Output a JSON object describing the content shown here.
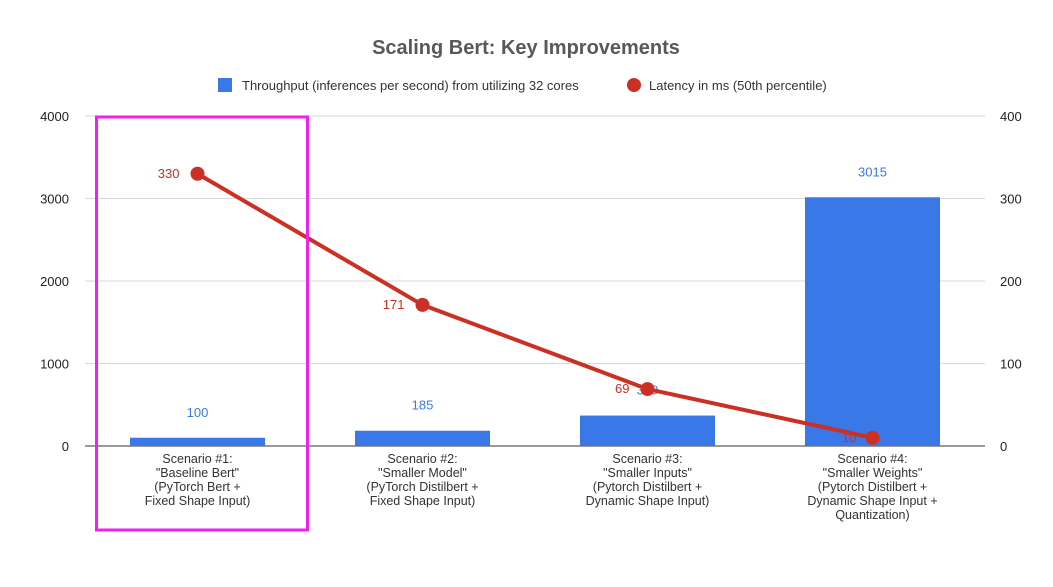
{
  "chart_data": {
    "type": "bar",
    "title": "Scaling Bert: Key Improvements",
    "categories": [
      [
        "Scenario #1:",
        "\"Baseline Bert\"",
        "(PyTorch Bert +",
        "Fixed Shape Input)"
      ],
      [
        "Scenario #2:",
        "\"Smaller Model\"",
        "(PyTorch Distilbert +",
        "Fixed Shape Input)"
      ],
      [
        "Scenario #3:",
        "\"Smaller Inputs\"",
        "(Pytorch Distilbert +",
        "Dynamic Shape Input)"
      ],
      [
        "Scenario #4:",
        "\"Smaller Weights\"",
        "(Pytorch Distilbert +",
        "Dynamic Shape Input +",
        "Quantization)"
      ]
    ],
    "series": [
      {
        "name": "Throughput (inferences per second) from utilizing 32 cores",
        "type": "bar",
        "axis": "left",
        "color": "#3b78e7",
        "values": [
          100,
          185,
          369,
          3015
        ]
      },
      {
        "name": "Latency in ms (50th percentile)",
        "type": "line",
        "axis": "right",
        "color": "#cc2f23",
        "values": [
          330,
          171,
          69,
          10
        ]
      }
    ],
    "y_left": {
      "ticks": [
        0,
        1000,
        2000,
        3000,
        4000
      ],
      "ylim": [
        0,
        4000
      ]
    },
    "y_right": {
      "ticks": [
        0,
        100,
        200,
        300,
        400
      ],
      "ylim": [
        0,
        400
      ]
    },
    "grid": true,
    "legend": "top-center",
    "highlight": {
      "category_index": 0,
      "color": "#ee22ee"
    }
  }
}
